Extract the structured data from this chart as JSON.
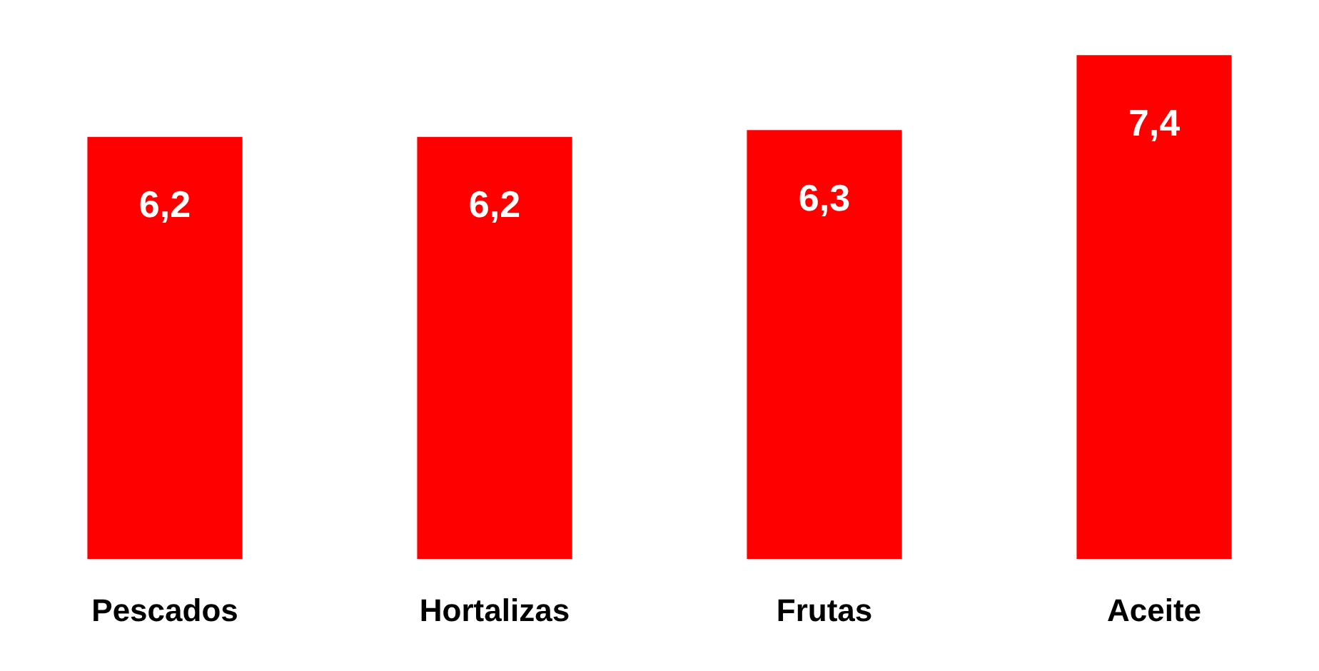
{
  "chart_data": {
    "type": "bar",
    "categories": [
      "Pescados",
      "Hortalizas",
      "Frutas",
      "Aceite"
    ],
    "values": [
      6.2,
      6.2,
      6.3,
      7.4
    ],
    "color": "#ff0000",
    "value_labels": [
      "6,2",
      "6,2",
      "6,3",
      "7,4"
    ],
    "tick_labels": "x",
    "grid": false,
    "legend": false
  }
}
